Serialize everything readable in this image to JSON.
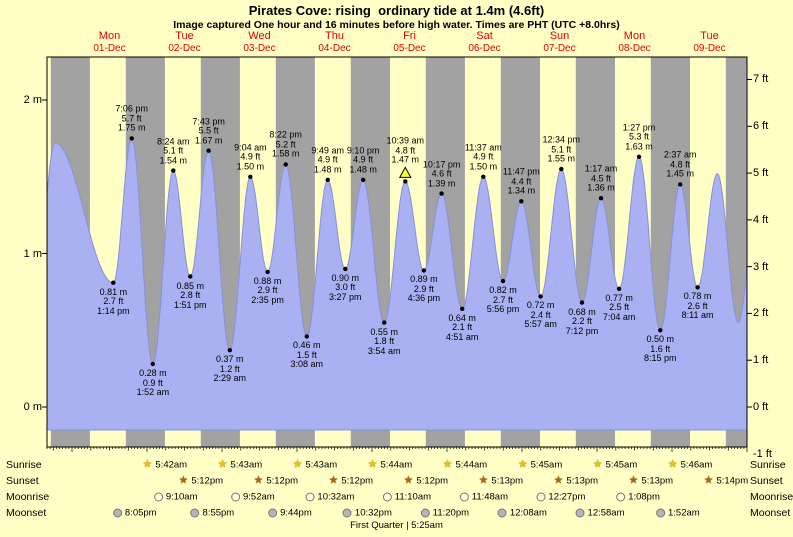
{
  "header": {
    "title": "Pirates Cove: rising  ordinary tide at 1.4m (4.6ft)",
    "subtitle": "Image captured One hour and 16 minutes before high water. Times are PHT (UTC +8.0hrs)"
  },
  "days": [
    {
      "name": "Mon",
      "date": "01-Dec"
    },
    {
      "name": "Tue",
      "date": "02-Dec"
    },
    {
      "name": "Wed",
      "date": "03-Dec"
    },
    {
      "name": "Thu",
      "date": "04-Dec"
    },
    {
      "name": "Fri",
      "date": "05-Dec"
    },
    {
      "name": "Sat",
      "date": "06-Dec"
    },
    {
      "name": "Sun",
      "date": "07-Dec"
    },
    {
      "name": "Mon",
      "date": "08-Dec"
    },
    {
      "name": "Tue",
      "date": "09-Dec"
    }
  ],
  "axes": {
    "left_labels": [
      {
        "text": "2 m",
        "value_m": 2
      },
      {
        "text": "1 m",
        "value_m": 1
      },
      {
        "text": "0 m",
        "value_m": 0
      }
    ],
    "right_labels": [
      {
        "text": "7 ft",
        "value_ft": 7
      },
      {
        "text": "6 ft",
        "value_ft": 6
      },
      {
        "text": "5 ft",
        "value_ft": 5
      },
      {
        "text": "4 ft",
        "value_ft": 4
      },
      {
        "text": "3 ft",
        "value_ft": 3
      },
      {
        "text": "2 ft",
        "value_ft": 2
      },
      {
        "text": "1 ft",
        "value_ft": 1
      },
      {
        "text": "0 ft",
        "value_ft": 0
      },
      {
        "text": "-1 ft",
        "value_ft": -1
      }
    ]
  },
  "chart_data": {
    "type": "area",
    "title": "Pirates Cove tide height, 01-Dec to 09-Dec",
    "x_units": "hours since midnight 01-Dec",
    "x_hours_range": [
      -8,
      216
    ],
    "ylim_m": [
      -0.26,
      2.28
    ],
    "area_base_m": -0.15,
    "grid": false,
    "colors": {
      "background": "#ffffc6",
      "day_band": "#ffffc6",
      "night_band": "#a2a2a2",
      "tide_fill": "#a9b1f2",
      "tide_stroke": "#8890dd",
      "date_text": "#e60000",
      "annotation_text": "#000000",
      "current_marker": "#ffff33"
    },
    "tide_events": [
      {
        "type": "low",
        "day": "Mon 01-Dec",
        "time": "1:14 pm",
        "hour": 13.23,
        "m": 0.81,
        "ft": 2.7
      },
      {
        "type": "high",
        "day": "Mon 01-Dec",
        "time": "7:06 pm",
        "hour": 19.1,
        "m": 1.75,
        "ft": 5.7
      },
      {
        "type": "low",
        "day": "Tue 02-Dec",
        "time": "1:52 am",
        "hour": 25.87,
        "m": 0.28,
        "ft": 0.9
      },
      {
        "type": "high",
        "day": "Tue 02-Dec",
        "time": "8:24 am",
        "hour": 32.4,
        "m": 1.54,
        "ft": 5.1
      },
      {
        "type": "low",
        "day": "Tue 02-Dec",
        "time": "1:51 pm",
        "hour": 37.85,
        "m": 0.85,
        "ft": 2.8
      },
      {
        "type": "high",
        "day": "Tue 02-Dec",
        "time": "7:43 pm",
        "hour": 43.72,
        "m": 1.67,
        "ft": 5.5
      },
      {
        "type": "low",
        "day": "Wed 03-Dec",
        "time": "2:29 am",
        "hour": 50.48,
        "m": 0.37,
        "ft": 1.2
      },
      {
        "type": "high",
        "day": "Wed 03-Dec",
        "time": "9:04 am",
        "hour": 57.07,
        "m": 1.5,
        "ft": 4.9
      },
      {
        "type": "low",
        "day": "Wed 03-Dec",
        "time": "2:35 pm",
        "hour": 62.58,
        "m": 0.88,
        "ft": 2.9
      },
      {
        "type": "high",
        "day": "Wed 03-Dec",
        "time": "8:22 pm",
        "hour": 68.37,
        "m": 1.58,
        "ft": 5.2
      },
      {
        "type": "low",
        "day": "Thu 04-Dec",
        "time": "3:08 am",
        "hour": 75.13,
        "m": 0.46,
        "ft": 1.5
      },
      {
        "type": "high",
        "day": "Thu 04-Dec",
        "time": "9:49 am",
        "hour": 81.82,
        "m": 1.48,
        "ft": 4.9
      },
      {
        "type": "low",
        "day": "Thu 04-Dec",
        "time": "3:27 pm",
        "hour": 87.45,
        "m": 0.9,
        "ft": 3.0
      },
      {
        "type": "high",
        "day": "Thu 04-Dec",
        "time": "9:10 pm",
        "hour": 93.17,
        "m": 1.48,
        "ft": 4.9
      },
      {
        "type": "low",
        "day": "Fri 05-Dec",
        "time": "3:54 am",
        "hour": 99.9,
        "m": 0.55,
        "ft": 1.8
      },
      {
        "type": "high",
        "day": "Fri 05-Dec",
        "time": "10:39 am",
        "hour": 106.65,
        "m": 1.47,
        "ft": 4.8,
        "current": true
      },
      {
        "type": "low",
        "day": "Fri 05-Dec",
        "time": "4:36 pm",
        "hour": 112.6,
        "m": 0.89,
        "ft": 2.9
      },
      {
        "type": "high",
        "day": "Fri 05-Dec",
        "time": "10:17 pm",
        "hour": 118.28,
        "m": 1.39,
        "ft": 4.6
      },
      {
        "type": "low",
        "day": "Sat 06-Dec",
        "time": "4:51 am",
        "hour": 124.85,
        "m": 0.64,
        "ft": 2.1
      },
      {
        "type": "high",
        "day": "Sat 06-Dec",
        "time": "11:37 am",
        "hour": 131.62,
        "m": 1.5,
        "ft": 4.9
      },
      {
        "type": "low",
        "day": "Sat 06-Dec",
        "time": "5:56 pm",
        "hour": 137.93,
        "m": 0.82,
        "ft": 2.7
      },
      {
        "type": "high",
        "day": "Sat 06-Dec",
        "time": "11:47 pm",
        "hour": 143.78,
        "m": 1.34,
        "ft": 4.4
      },
      {
        "type": "low",
        "day": "Sun 07-Dec",
        "time": "5:57 am",
        "hour": 149.95,
        "m": 0.72,
        "ft": 2.4
      },
      {
        "type": "high",
        "day": "Sun 07-Dec",
        "time": "12:34 pm",
        "hour": 156.57,
        "m": 1.55,
        "ft": 5.1
      },
      {
        "type": "low",
        "day": "Sun 07-Dec",
        "time": "7:12 pm",
        "hour": 163.2,
        "m": 0.68,
        "ft": 2.2
      },
      {
        "type": "high",
        "day": "Mon 08-Dec",
        "time": "1:17 am",
        "hour": 169.28,
        "m": 1.36,
        "ft": 4.5
      },
      {
        "type": "low",
        "day": "Mon 08-Dec",
        "time": "7:04 am",
        "hour": 175.07,
        "m": 0.77,
        "ft": 2.5
      },
      {
        "type": "high",
        "day": "Mon 08-Dec",
        "time": "1:27 pm",
        "hour": 181.45,
        "m": 1.63,
        "ft": 5.3
      },
      {
        "type": "low",
        "day": "Mon 08-Dec",
        "time": "8:15 pm",
        "hour": 188.25,
        "m": 0.5,
        "ft": 1.6
      },
      {
        "type": "high",
        "day": "Tue 09-Dec",
        "time": "2:37 am",
        "hour": 194.62,
        "m": 1.45,
        "ft": 4.8
      },
      {
        "type": "low",
        "day": "Tue 09-Dec",
        "time": "8:11 am",
        "hour": 200.18,
        "m": 0.78,
        "ft": 2.6
      }
    ],
    "edge_support_points": [
      {
        "type": "low",
        "hour": -11.5,
        "m": 0.85
      },
      {
        "type": "high",
        "hour": -5.4,
        "m": 1.72
      },
      {
        "type": "high",
        "hour": 206.5,
        "m": 1.52
      },
      {
        "type": "low",
        "hour": 213.2,
        "m": 0.55
      },
      {
        "type": "high",
        "hour": 219.5,
        "m": 1.45
      }
    ],
    "night_bands_hours": [
      [
        -6.8,
        5.7
      ],
      [
        17.2,
        29.7
      ],
      [
        41.2,
        53.72
      ],
      [
        65.2,
        77.72
      ],
      [
        89.2,
        101.73
      ],
      [
        113.22,
        125.73
      ],
      [
        137.22,
        149.75
      ],
      [
        161.22,
        173.75
      ],
      [
        185.22,
        197.77
      ],
      [
        209.23,
        216
      ]
    ]
  },
  "almanac": {
    "rows": [
      {
        "label": "Sunrise",
        "icon": "sunrise-star-icon",
        "icon_color": "#f2c200",
        "entries": [
          {
            "time": "5:42am",
            "hour": 29.7
          },
          {
            "time": "5:43am",
            "hour": 53.72
          },
          {
            "time": "5:43am",
            "hour": 77.72
          },
          {
            "time": "5:44am",
            "hour": 101.73
          },
          {
            "time": "5:44am",
            "hour": 125.73
          },
          {
            "time": "5:45am",
            "hour": 149.75
          },
          {
            "time": "5:45am",
            "hour": 173.75
          },
          {
            "time": "5:46am",
            "hour": 197.77
          }
        ]
      },
      {
        "label": "Sunset",
        "icon": "sunset-star-icon",
        "icon_color": "#a8660e",
        "entries": [
          {
            "time": "5:12pm",
            "hour": 41.2
          },
          {
            "time": "5:12pm",
            "hour": 65.2
          },
          {
            "time": "5:12pm",
            "hour": 89.2
          },
          {
            "time": "5:12pm",
            "hour": 113.22
          },
          {
            "time": "5:13pm",
            "hour": 137.22
          },
          {
            "time": "5:13pm",
            "hour": 161.22
          },
          {
            "time": "5:13pm",
            "hour": 185.22
          },
          {
            "time": "5:14pm",
            "hour": 209.23
          }
        ]
      },
      {
        "label": "Moonrise",
        "icon": "moonrise-moon-icon",
        "icon_color": "#ffffda",
        "entries": [
          {
            "time": "9:10am",
            "hour": 33.17
          },
          {
            "time": "9:52am",
            "hour": 57.87
          },
          {
            "time": "10:32am",
            "hour": 82.53
          },
          {
            "time": "11:10am",
            "hour": 107.17
          },
          {
            "time": "11:48am",
            "hour": 131.8
          },
          {
            "time": "12:27pm",
            "hour": 156.45
          },
          {
            "time": "1:08pm",
            "hour": 181.13
          }
        ]
      },
      {
        "label": "Moonset",
        "icon": "moonset-moon-icon",
        "icon_color": "#b5b5b5",
        "entries": [
          {
            "time": "8:05pm",
            "hour": 20.08
          },
          {
            "time": "8:55pm",
            "hour": 44.92
          },
          {
            "time": "9:44pm",
            "hour": 69.73
          },
          {
            "time": "10:32pm",
            "hour": 94.53
          },
          {
            "time": "11:20pm",
            "hour": 119.33
          },
          {
            "time": "12:08am",
            "hour": 144.13
          },
          {
            "time": "12:58am",
            "hour": 168.97
          },
          {
            "time": "1:52am",
            "hour": 193.87
          }
        ]
      }
    ],
    "footer": "First Quarter | 5:25am"
  }
}
